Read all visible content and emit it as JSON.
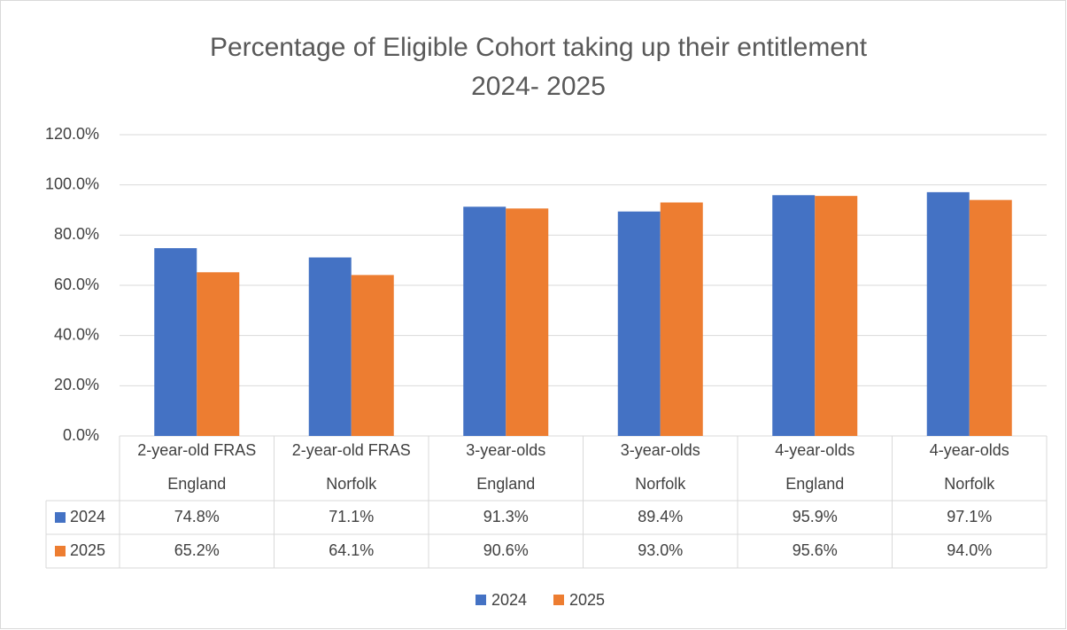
{
  "chart_data": {
    "type": "bar",
    "title": [
      "Percentage of Eligible Cohort taking up their entitlement",
      "2024- 2025"
    ],
    "categories": [
      [
        "2-year-old FRAS",
        "England"
      ],
      [
        "2-year-old FRAS",
        "Norfolk"
      ],
      [
        "3-year-olds",
        "England"
      ],
      [
        "3-year-olds",
        "Norfolk"
      ],
      [
        "4-year-olds",
        "England"
      ],
      [
        "4-year-olds",
        "Norfolk"
      ]
    ],
    "series": [
      {
        "name": "2024",
        "color": "#4472c4",
        "values": [
          74.8,
          71.1,
          91.3,
          89.4,
          95.9,
          97.1
        ],
        "value_labels": [
          "74.8%",
          "71.1%",
          "91.3%",
          "89.4%",
          "95.9%",
          "97.1%"
        ]
      },
      {
        "name": "2025",
        "color": "#ed7d31",
        "values": [
          65.2,
          64.1,
          90.6,
          93.0,
          95.6,
          94.0
        ],
        "value_labels": [
          "65.2%",
          "64.1%",
          "90.6%",
          "93.0%",
          "95.6%",
          "94.0%"
        ]
      }
    ],
    "ylim": [
      0,
      120
    ],
    "yticks": [
      {
        "value": 0,
        "label": "0.0%"
      },
      {
        "value": 20,
        "label": "20.0%"
      },
      {
        "value": 40,
        "label": "40.0%"
      },
      {
        "value": 60,
        "label": "60.0%"
      },
      {
        "value": 80,
        "label": "80.0%"
      },
      {
        "value": 100,
        "label": "100.0%"
      },
      {
        "value": 120,
        "label": "120.0%"
      }
    ],
    "grid": true,
    "legend": "bottom"
  }
}
